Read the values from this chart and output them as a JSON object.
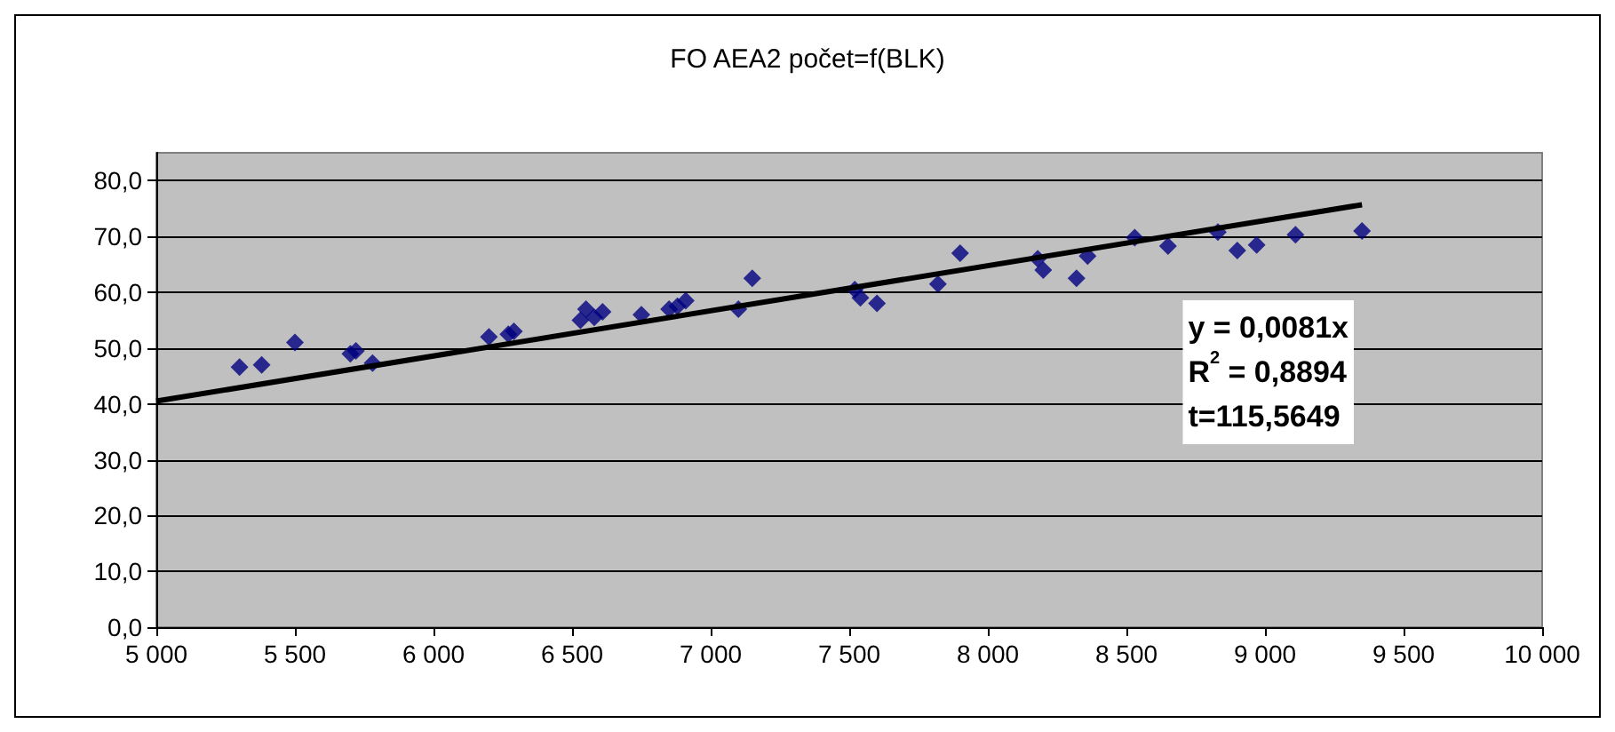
{
  "chart_data": {
    "type": "scatter",
    "title": "FO AEA2 počet=f(BLK)",
    "series": [
      {
        "type": "scatter",
        "color": "#000080",
        "marker": "diamond",
        "x": [
          5300,
          5380,
          5500,
          5700,
          5720,
          5780,
          6200,
          6270,
          6290,
          6530,
          6550,
          6580,
          6610,
          6750,
          6850,
          6880,
          6910,
          7100,
          7150,
          7520,
          7540,
          7600,
          7820,
          7900,
          8180,
          8200,
          8320,
          8360,
          8530,
          8650,
          8830,
          8900,
          8970,
          9110,
          9350
        ],
        "values": [
          46.6,
          47.0,
          51.0,
          49.0,
          49.5,
          47.3,
          52.0,
          52.5,
          53.0,
          55.0,
          57.0,
          55.5,
          56.5,
          56.0,
          57.0,
          57.5,
          58.5,
          57.0,
          62.5,
          60.5,
          59.0,
          58.0,
          61.5,
          67.0,
          66.0,
          64.0,
          62.5,
          66.5,
          69.8,
          68.3,
          70.8,
          67.5,
          68.5,
          70.3,
          71.0
        ]
      },
      {
        "type": "line",
        "color": "#000000",
        "marker": "none",
        "x": [
          5000,
          9350
        ],
        "values": [
          40.5,
          75.7
        ]
      }
    ],
    "annotations": [
      "y = 0,0081x",
      "R$^{2}$ = 0,8894",
      "t=115,5649"
    ],
    "xlim": [
      5000,
      10000
    ],
    "xticks": [
      {
        "value": 5000,
        "label": "5 000"
      },
      {
        "value": 5500,
        "label": "5 500"
      },
      {
        "value": 6000,
        "label": "6 000"
      },
      {
        "value": 6500,
        "label": "6 500"
      },
      {
        "value": 7000,
        "label": "7 000"
      },
      {
        "value": 7500,
        "label": "7 500"
      },
      {
        "value": 8000,
        "label": "8 000"
      },
      {
        "value": 8500,
        "label": "8 500"
      },
      {
        "value": 9000,
        "label": "9 000"
      },
      {
        "value": 9500,
        "label": "9 500"
      },
      {
        "value": 10000,
        "label": "10 000"
      }
    ],
    "ylim": [
      0,
      85
    ],
    "yticks": [
      {
        "value": 0,
        "label": "0,0"
      },
      {
        "value": 10,
        "label": "10,0"
      },
      {
        "value": 20,
        "label": "20,0"
      },
      {
        "value": 30,
        "label": "30,0"
      },
      {
        "value": 40,
        "label": "40,0"
      },
      {
        "value": 50,
        "label": "50,0"
      },
      {
        "value": 60,
        "label": "60,0"
      },
      {
        "value": 70,
        "label": "70,0"
      },
      {
        "value": 80,
        "label": "80,0"
      }
    ],
    "grid": "y"
  }
}
